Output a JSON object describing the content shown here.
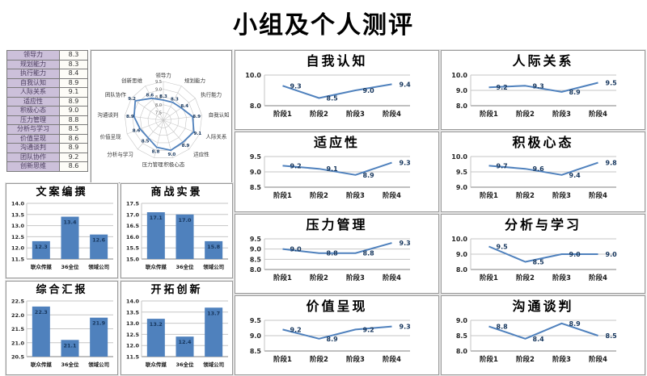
{
  "page_title": "小组及个人测评",
  "colors": {
    "accent": "#4F81BD",
    "data_label": "#17375E",
    "grid": "#C6C6C6",
    "axis": "#808080",
    "tick_text": "#262626",
    "table_label_bg": "#CCC0DA"
  },
  "score_table": {
    "rows": [
      {
        "label": "领导力",
        "value": "8.3"
      },
      {
        "label": "规划能力",
        "value": "8.3"
      },
      {
        "label": "执行能力",
        "value": "8.4"
      },
      {
        "label": "自我认知",
        "value": "8.9"
      },
      {
        "label": "人际关系",
        "value": "9.1"
      },
      {
        "label": "适应性",
        "value": "8.9"
      },
      {
        "label": "积极心态",
        "value": "9.0"
      },
      {
        "label": "压力管理",
        "value": "8.8"
      },
      {
        "label": "分析与学习",
        "value": "8.5"
      },
      {
        "label": "价值呈现",
        "value": "8.6"
      },
      {
        "label": "沟通谈判",
        "value": "8.9"
      },
      {
        "label": "团队协作",
        "value": "9.2"
      },
      {
        "label": "创新思维",
        "value": "8.6"
      }
    ]
  },
  "chart_data": [
    {
      "type": "radar",
      "title": "",
      "categories": [
        "领导力",
        "规划能力",
        "执行能力",
        "自我认知",
        "人际关系",
        "适应性",
        "积极心态",
        "压力管理",
        "分析与学习",
        "价值呈现",
        "沟通谈判",
        "团队协作",
        "创新思维"
      ],
      "values": [
        "8.3",
        "8.3",
        "8.4",
        "8.9",
        "9.1",
        "8.9",
        "9.0",
        "8.8",
        "8.5",
        "8.6",
        "8.9",
        "9.2",
        "8.6"
      ],
      "ring_values": [
        7.5,
        8.0,
        8.5,
        9.0,
        9.5
      ],
      "rmin": 7.0,
      "rmax": 9.5
    },
    {
      "type": "bar",
      "title": "文案编撰",
      "categories": [
        "联众传媒",
        "36全位",
        "领域公司"
      ],
      "values": [
        "12.3",
        "13.4",
        "12.6"
      ],
      "ylim": [
        11.5,
        14.0
      ],
      "ystep": 0.5
    },
    {
      "type": "bar",
      "title": "商战实景",
      "categories": [
        "联众传媒",
        "36全位",
        "领域公司"
      ],
      "values": [
        "17.1",
        "17.0",
        "15.8"
      ],
      "ylim": [
        15.0,
        17.5
      ],
      "ystep": 0.5
    },
    {
      "type": "bar",
      "title": "综合汇报",
      "categories": [
        "联众传媒",
        "36全位",
        "领域公司"
      ],
      "values": [
        "22.3",
        "21.1",
        "21.9"
      ],
      "ylim": [
        20.5,
        22.5
      ],
      "ystep": 0.5
    },
    {
      "type": "bar",
      "title": "开拓创新",
      "categories": [
        "联众传媒",
        "36全位",
        "领域公司"
      ],
      "values": [
        "13.2",
        "12.4",
        "13.7"
      ],
      "ylim": [
        11.5,
        14.0
      ],
      "ystep": 0.5
    },
    {
      "type": "line",
      "title": "自我认知",
      "categories": [
        "阶段1",
        "阶段2",
        "阶段3",
        "阶段4"
      ],
      "values": [
        "9.3",
        "8.5",
        "9.0",
        "9.4"
      ],
      "yticks": [
        10.0,
        8.0
      ]
    },
    {
      "type": "line",
      "title": "人际关系",
      "categories": [
        "阶段1",
        "阶段2",
        "阶段3",
        "阶段4"
      ],
      "values": [
        "9.2",
        "9.3",
        "8.9",
        "9.5"
      ],
      "yticks": [
        10.0,
        9.0,
        8.0
      ]
    },
    {
      "type": "line",
      "title": "适应性",
      "categories": [
        "阶段1",
        "阶段2",
        "阶段3",
        "阶段4"
      ],
      "values": [
        "9.2",
        "9.1",
        "8.9",
        "9.3"
      ],
      "yticks": [
        9.5,
        9.0,
        8.5
      ]
    },
    {
      "type": "line",
      "title": "积极心态",
      "categories": [
        "阶段1",
        "阶段2",
        "阶段3",
        "阶段4"
      ],
      "values": [
        "9.7",
        "9.6",
        "9.4",
        "9.8"
      ],
      "yticks": [
        10.0,
        9.5,
        9.0
      ]
    },
    {
      "type": "line",
      "title": "压力管理",
      "categories": [
        "阶段1",
        "阶段2",
        "阶段3",
        "阶段4"
      ],
      "values": [
        "9.0",
        "8.8",
        "8.8",
        "9.3"
      ],
      "yticks": [
        9.5,
        9.0,
        8.5,
        8.0
      ]
    },
    {
      "type": "line",
      "title": "分析与学习",
      "categories": [
        "阶段1",
        "阶段2",
        "阶段3",
        "阶段4"
      ],
      "values": [
        "9.5",
        "8.5",
        "9.0",
        "9.0"
      ],
      "yticks": [
        10.0,
        9.0,
        8.0
      ]
    },
    {
      "type": "line",
      "title": "价值呈现",
      "categories": [
        "阶段1",
        "阶段2",
        "阶段3",
        "阶段4"
      ],
      "values": [
        "9.2",
        "8.9",
        "9.2",
        "9.3"
      ],
      "yticks": [
        9.5,
        9.0,
        8.5
      ]
    },
    {
      "type": "line",
      "title": "沟通谈判",
      "categories": [
        "阶段1",
        "阶段2",
        "阶段3",
        "阶段4"
      ],
      "values": [
        "8.8",
        "8.4",
        "8.9",
        "8.5"
      ],
      "yticks": [
        9.0,
        8.5,
        8.0
      ]
    }
  ]
}
